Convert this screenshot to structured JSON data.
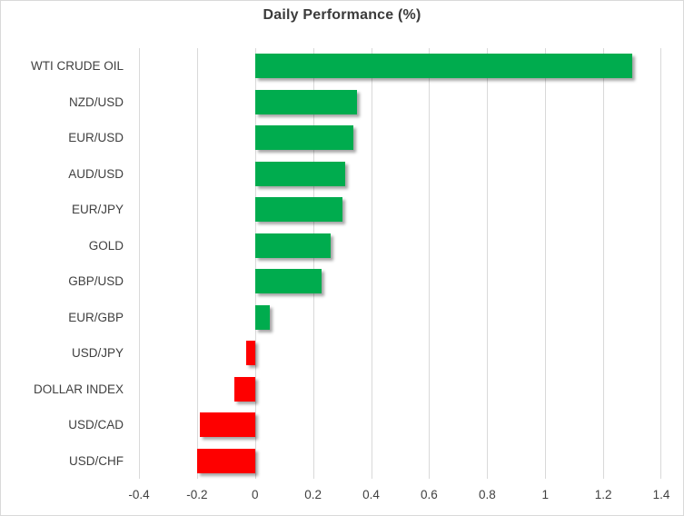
{
  "chart_data": {
    "type": "bar",
    "orientation": "horizontal",
    "title": "Daily Performance (%)",
    "categories": [
      "WTI CRUDE OIL",
      "NZD/USD",
      "EUR/USD",
      "AUD/USD",
      "EUR/JPY",
      "GOLD",
      "GBP/USD",
      "EUR/GBP",
      "USD/JPY",
      "DOLLAR INDEX",
      "USD/CAD",
      "USD/CHF"
    ],
    "values": [
      1.3,
      0.35,
      0.34,
      0.31,
      0.3,
      0.26,
      0.23,
      0.05,
      -0.03,
      -0.07,
      -0.19,
      -0.2
    ],
    "xlim": [
      -0.4,
      1.4
    ],
    "x_ticks": [
      -0.4,
      -0.2,
      0,
      0.2,
      0.4,
      0.6,
      0.8,
      1,
      1.2,
      1.4
    ],
    "x_tick_labels": [
      "-0.4",
      "-0.2",
      "0",
      "0.2",
      "0.4",
      "0.6",
      "0.8",
      "1",
      "1.2",
      "1.4"
    ],
    "grid": true,
    "legend": "none",
    "xlabel": "",
    "ylabel": "",
    "positive_color": "#00AC4E",
    "negative_color": "#FE0000",
    "gridline_color": "#D9D9D9",
    "text_color": "#404040"
  }
}
